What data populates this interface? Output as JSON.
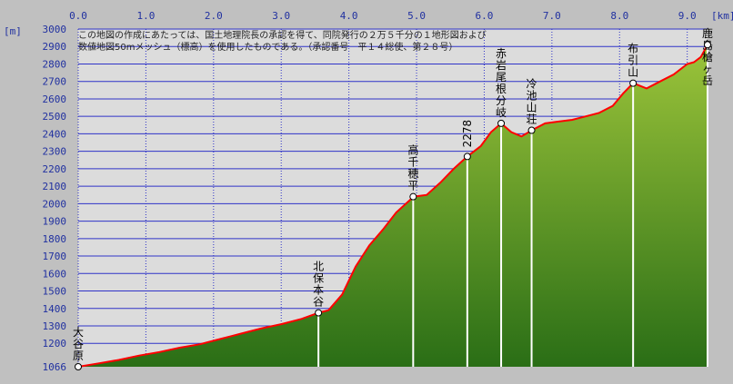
{
  "units": {
    "y": "[m]",
    "x": "[km]"
  },
  "copyright": {
    "line1": "この地図の作成にあたっては、国土地理院長の承認を得て、同院発行の２万５千分の１地形図および",
    "line2": "数値地図50mメッシュ（標高）を使用したものである。（承認番号　平１４総使、第２８号）"
  },
  "colors": {
    "background": "#c0c0c0",
    "plot": "#dcdcdc",
    "grid": "#2f33c8",
    "profile_line": "#ff0000",
    "fill_top": "#9cc43a",
    "fill_bottom": "#2a6e16",
    "axis_text": "#2030a0"
  },
  "chart_data": {
    "type": "area",
    "xlim": [
      0,
      9.3
    ],
    "ylim": [
      1066,
      3000
    ],
    "x_ticks": [
      "0.0",
      "1.0",
      "2.0",
      "3.0",
      "4.0",
      "5.0",
      "6.0",
      "7.0",
      "8.0",
      "9.0"
    ],
    "y_ticks": [
      "3000",
      "2900",
      "2800",
      "2700",
      "2600",
      "2500",
      "2400",
      "2300",
      "2200",
      "2100",
      "2000",
      "1900",
      "1800",
      "1700",
      "1600",
      "1500",
      "1400",
      "1300",
      "1200",
      "1066"
    ],
    "grid": true,
    "profile": [
      [
        0.0,
        1066
      ],
      [
        0.3,
        1085
      ],
      [
        0.6,
        1105
      ],
      [
        0.9,
        1130
      ],
      [
        1.2,
        1150
      ],
      [
        1.5,
        1175
      ],
      [
        1.8,
        1195
      ],
      [
        2.1,
        1225
      ],
      [
        2.4,
        1255
      ],
      [
        2.7,
        1285
      ],
      [
        3.0,
        1310
      ],
      [
        3.3,
        1340
      ],
      [
        3.55,
        1375
      ],
      [
        3.7,
        1390
      ],
      [
        3.9,
        1480
      ],
      [
        4.1,
        1640
      ],
      [
        4.3,
        1760
      ],
      [
        4.5,
        1850
      ],
      [
        4.7,
        1950
      ],
      [
        4.9,
        2020
      ],
      [
        4.95,
        2040
      ],
      [
        5.15,
        2050
      ],
      [
        5.35,
        2120
      ],
      [
        5.55,
        2200
      ],
      [
        5.75,
        2270
      ],
      [
        5.95,
        2330
      ],
      [
        6.1,
        2410
      ],
      [
        6.25,
        2460
      ],
      [
        6.4,
        2410
      ],
      [
        6.55,
        2385
      ],
      [
        6.7,
        2420
      ],
      [
        6.9,
        2460
      ],
      [
        7.1,
        2470
      ],
      [
        7.3,
        2480
      ],
      [
        7.5,
        2500
      ],
      [
        7.7,
        2520
      ],
      [
        7.9,
        2560
      ],
      [
        8.05,
        2630
      ],
      [
        8.2,
        2690
      ],
      [
        8.4,
        2660
      ],
      [
        8.6,
        2700
      ],
      [
        8.8,
        2740
      ],
      [
        9.0,
        2800
      ],
      [
        9.1,
        2810
      ],
      [
        9.2,
        2840
      ],
      [
        9.3,
        2910
      ]
    ],
    "waypoints": [
      {
        "name": "大谷原",
        "x": 0.0,
        "y": 1066
      },
      {
        "name": "北保本谷",
        "x": 3.55,
        "y": 1375
      },
      {
        "name": "高千穂平",
        "x": 4.95,
        "y": 2040
      },
      {
        "name": "2278",
        "x": 5.75,
        "y": 2270
      },
      {
        "name": "赤岩尾根分岐",
        "x": 6.25,
        "y": 2460
      },
      {
        "name": "冷池山荘",
        "x": 6.7,
        "y": 2420
      },
      {
        "name": "布引山",
        "x": 8.2,
        "y": 2690
      },
      {
        "name": "鹿島槍ヶ岳",
        "x": 9.3,
        "y": 2910
      }
    ]
  }
}
